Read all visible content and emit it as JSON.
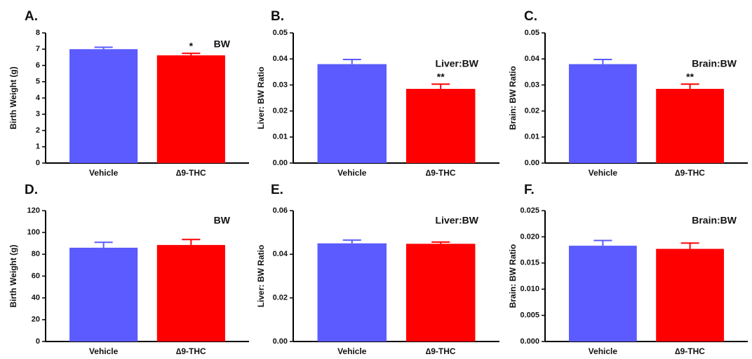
{
  "colors": {
    "vehicle": "#5b5bff",
    "thc": "#ff0000",
    "axis": "#000000"
  },
  "chart_data": [
    {
      "panel": "A.",
      "type": "bar",
      "title": "BW",
      "ylabel": "Birth  Weight (g)",
      "categories": [
        "Vehicle",
        "∆9-THC"
      ],
      "values": [
        7.0,
        6.62
      ],
      "errors": [
        0.12,
        0.12
      ],
      "significance": [
        "",
        "*"
      ],
      "ylim": [
        0,
        8
      ],
      "yticks": [
        "0",
        "1",
        "2",
        "3",
        "4",
        "5",
        "6",
        "7",
        "8"
      ]
    },
    {
      "panel": "B.",
      "type": "bar",
      "title": "Liver:BW",
      "ylabel": "Liver: BW Ratio",
      "categories": [
        "Vehicle",
        "∆9-THC"
      ],
      "values": [
        0.038,
        0.0285
      ],
      "errors": [
        0.0018,
        0.0018
      ],
      "significance": [
        "",
        "**"
      ],
      "ylim": [
        0,
        0.05
      ],
      "yticks": [
        "0.00",
        "0.01",
        "0.02",
        "0.03",
        "0.04",
        "0.05"
      ]
    },
    {
      "panel": "C.",
      "type": "bar",
      "title": "Brain:BW",
      "ylabel": "Brain: BW Ratio",
      "categories": [
        "Vehicle",
        "∆9-THC"
      ],
      "values": [
        0.038,
        0.0285
      ],
      "errors": [
        0.0018,
        0.0018
      ],
      "significance": [
        "",
        "**"
      ],
      "ylim": [
        0,
        0.05
      ],
      "yticks": [
        "0.00",
        "0.01",
        "0.02",
        "0.03",
        "0.04",
        "0.05"
      ]
    },
    {
      "panel": "D.",
      "type": "bar",
      "title": "BW",
      "ylabel": "Birth  Weight (g)",
      "categories": [
        "Vehicle",
        "∆9-THC"
      ],
      "values": [
        86,
        88.5
      ],
      "errors": [
        5,
        5
      ],
      "significance": [
        "",
        ""
      ],
      "ylim": [
        0,
        120
      ],
      "yticks": [
        "0",
        "20",
        "40",
        "60",
        "80",
        "100",
        "120"
      ]
    },
    {
      "panel": "E.",
      "type": "bar",
      "title": "Liver:BW",
      "ylabel": "Liver: BW Ratio",
      "categories": [
        "Vehicle",
        "∆9-THC"
      ],
      "values": [
        0.045,
        0.0448
      ],
      "errors": [
        0.0015,
        0.0008
      ],
      "significance": [
        "",
        ""
      ],
      "ylim": [
        0,
        0.06
      ],
      "yticks": [
        "0.00",
        "0.02",
        "0.04",
        "0.06"
      ]
    },
    {
      "panel": "F.",
      "type": "bar",
      "title": "Brain:BW",
      "ylabel": "Brain: BW Ratio",
      "categories": [
        "Vehicle",
        "∆9-THC"
      ],
      "values": [
        0.0183,
        0.0177
      ],
      "errors": [
        0.001,
        0.0011
      ],
      "significance": [
        "",
        ""
      ],
      "ylim": [
        0,
        0.025
      ],
      "yticks": [
        "0.000",
        "0.005",
        "0.010",
        "0.015",
        "0.020",
        "0.025"
      ]
    }
  ]
}
